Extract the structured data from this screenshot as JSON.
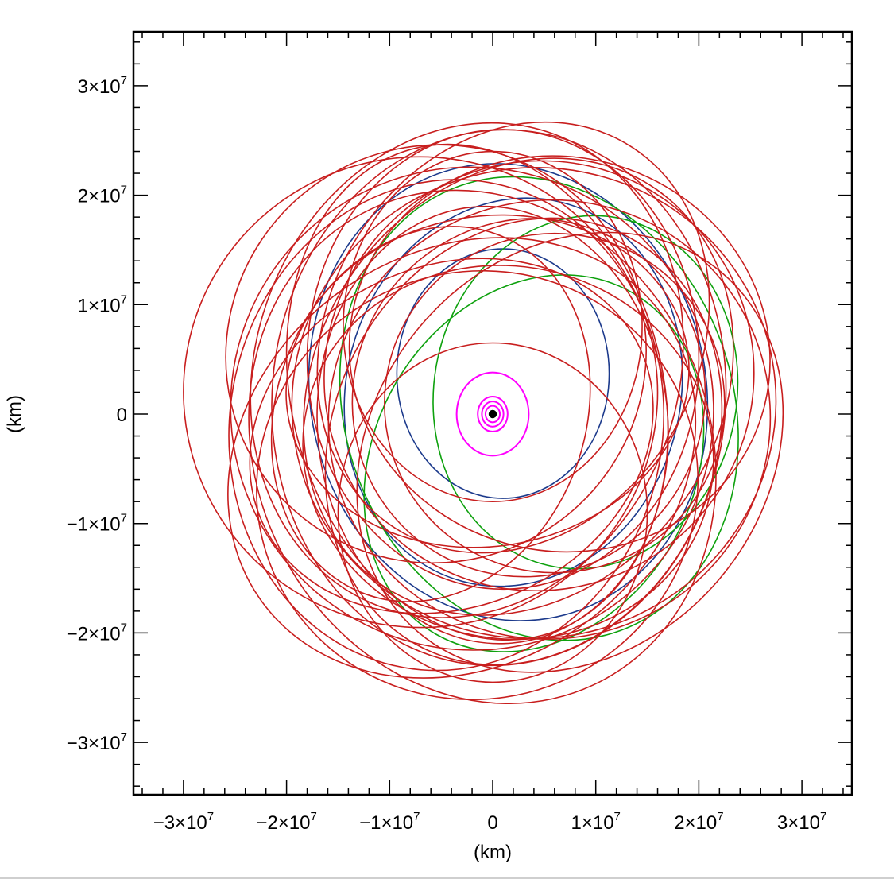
{
  "chart_data": {
    "type": "line",
    "title": "",
    "xlabel": "(km)",
    "ylabel": "(km)",
    "xlim": [
      -35000000,
      35000000
    ],
    "ylim": [
      -35000000,
      35000000
    ],
    "x_ticks": [
      {
        "value": -30000000,
        "mant": "−3×10",
        "exp": "7"
      },
      {
        "value": -20000000,
        "mant": "−2×10",
        "exp": "7"
      },
      {
        "value": -10000000,
        "mant": "−1×10",
        "exp": "7"
      },
      {
        "value": 0,
        "mant": "0",
        "exp": ""
      },
      {
        "value": 10000000,
        "mant": "1×10",
        "exp": "7"
      },
      {
        "value": 20000000,
        "mant": "2×10",
        "exp": "7"
      },
      {
        "value": 30000000,
        "mant": "3×10",
        "exp": "7"
      }
    ],
    "y_ticks": [
      {
        "value": 30000000,
        "mant": "3×10",
        "exp": "7"
      },
      {
        "value": 20000000,
        "mant": "2×10",
        "exp": "7"
      },
      {
        "value": 10000000,
        "mant": "1×10",
        "exp": "7"
      },
      {
        "value": 0,
        "mant": "0",
        "exp": ""
      },
      {
        "value": -10000000,
        "mant": "−1×10",
        "exp": "7"
      },
      {
        "value": -20000000,
        "mant": "−2×10",
        "exp": "7"
      },
      {
        "value": -30000000,
        "mant": "−3×10",
        "exp": "7"
      }
    ],
    "grid": false,
    "legend": "none",
    "colors": {
      "red": "#c81e1e",
      "blue": "#1c3a8c",
      "green": "#0ea10e",
      "magenta": "#ff00ff",
      "central_body": "#000000"
    },
    "central_body": {
      "x": 0,
      "y": 0,
      "r": 400000
    },
    "orbit_groups": [
      {
        "color_key": "magenta",
        "orbits": [
          {
            "cx": 0,
            "cy": 0,
            "a": 3500000,
            "b": 3800000,
            "rot": 0
          },
          {
            "cx": 0,
            "cy": 0,
            "a": 1450000,
            "b": 1600000,
            "rot": 0
          },
          {
            "cx": 0,
            "cy": 0,
            "a": 1050000,
            "b": 1150000,
            "rot": 0
          },
          {
            "cx": 0,
            "cy": 0,
            "a": 700000,
            "b": 750000,
            "rot": 0
          }
        ]
      },
      {
        "color_key": "blue",
        "orbits": [
          {
            "cx": 1000000,
            "cy": 3700000,
            "a": 10300000,
            "b": 11400000,
            "rot": 0
          },
          {
            "cx": 2000000,
            "cy": 2000000,
            "a": 16200000,
            "b": 17900000,
            "rot": 15
          },
          {
            "cx": 1500000,
            "cy": 2000000,
            "a": 19200000,
            "b": 21000000,
            "rot": -12
          }
        ]
      },
      {
        "color_key": "green",
        "orbits": [
          {
            "cx": 9000000,
            "cy": 2000000,
            "a": 14700000,
            "b": 16200000,
            "rot": 10
          },
          {
            "cx": 4500000,
            "cy": 500000,
            "a": 18800000,
            "b": 21600000,
            "rot": -20
          },
          {
            "cx": 4000000,
            "cy": -4500000,
            "a": 15500000,
            "b": 18000000,
            "rot": 30
          }
        ]
      },
      {
        "color_key": "red",
        "orbits": [
          {
            "cx": 600000,
            "cy": 1500000,
            "a": 22000000,
            "b": 24500000,
            "rot": 5
          },
          {
            "cx": -2500000,
            "cy": 4000000,
            "a": 20500000,
            "b": 23000000,
            "rot": 20
          },
          {
            "cx": 4000000,
            "cy": 1000000,
            "a": 23500000,
            "b": 21500000,
            "rot": -10
          },
          {
            "cx": -1000000,
            "cy": -3000000,
            "a": 22000000,
            "b": 24000000,
            "rot": -25
          },
          {
            "cx": 2500000,
            "cy": 2500000,
            "a": 19500000,
            "b": 22000000,
            "rot": 35
          },
          {
            "cx": -4500000,
            "cy": -1000000,
            "a": 21000000,
            "b": 22500000,
            "rot": 10
          },
          {
            "cx": 5500000,
            "cy": -500000,
            "a": 21500000,
            "b": 20000000,
            "rot": -30
          },
          {
            "cx": -1500000,
            "cy": 2000000,
            "a": 18000000,
            "b": 23000000,
            "rot": -15
          },
          {
            "cx": 3000000,
            "cy": -2500000,
            "a": 18500000,
            "b": 21000000,
            "rot": 25
          },
          {
            "cx": -2000000,
            "cy": 500000,
            "a": 23500000,
            "b": 22000000,
            "rot": 45
          },
          {
            "cx": 1000000,
            "cy": 5000000,
            "a": 19000000,
            "b": 21000000,
            "rot": 0
          },
          {
            "cx": -3000000,
            "cy": -4000000,
            "a": 20000000,
            "b": 22500000,
            "rot": 55
          },
          {
            "cx": 4500000,
            "cy": 3500000,
            "a": 21000000,
            "b": 19500000,
            "rot": -45
          },
          {
            "cx": -7000000,
            "cy": 2000000,
            "a": 23000000,
            "b": 21500000,
            "rot": 8
          },
          {
            "cx": 6500000,
            "cy": 5500000,
            "a": 20500000,
            "b": 18000000,
            "rot": 15
          },
          {
            "cx": 0,
            "cy": -1000000,
            "a": 17000000,
            "b": 20000000,
            "rot": -5
          },
          {
            "cx": -5500000,
            "cy": 5500000,
            "a": 20500000,
            "b": 19000000,
            "rot": -35
          },
          {
            "cx": 7500000,
            "cy": -3500000,
            "a": 19000000,
            "b": 21500000,
            "rot": 40
          },
          {
            "cx": -1500000,
            "cy": -6500000,
            "a": 21500000,
            "b": 19500000,
            "rot": -20
          },
          {
            "cx": 2000000,
            "cy": 7000000,
            "a": 18000000,
            "b": 20500000,
            "rot": 30
          },
          {
            "cx": -4000000,
            "cy": -2000000,
            "a": 16500000,
            "b": 19000000,
            "rot": 65
          },
          {
            "cx": 3500000,
            "cy": 1500000,
            "a": 17500000,
            "b": 16000000,
            "rot": -60
          },
          {
            "cx": -500000,
            "cy": 3000000,
            "a": 16000000,
            "b": 18500000,
            "rot": 80
          },
          {
            "cx": 1500000,
            "cy": -3500000,
            "a": 20000000,
            "b": 17000000,
            "rot": 12
          },
          {
            "cx": -6000000,
            "cy": 0,
            "a": 15000000,
            "b": 17500000,
            "rot": 20
          },
          {
            "cx": 6000000,
            "cy": 1000000,
            "a": 16500000,
            "b": 15500000,
            "rot": -15
          },
          {
            "cx": 0,
            "cy": -9000000,
            "a": 15000000,
            "b": 15500000,
            "rot": 0
          },
          {
            "cx": 0,
            "cy": 8000000,
            "a": 14500000,
            "b": 16000000,
            "rot": 0
          }
        ]
      }
    ]
  }
}
